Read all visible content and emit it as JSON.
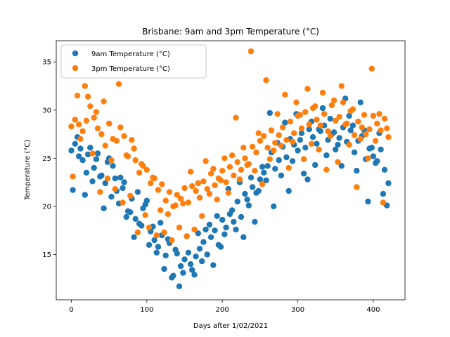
{
  "chart_data": {
    "type": "scatter",
    "title": "Brisbane: 9am and 3pm Temperature (°C)",
    "xlabel": "Days after 1/02/2021",
    "ylabel": "Temperature (°C)",
    "xlim": [
      -20,
      442
    ],
    "ylim": [
      10.3,
      37.2
    ],
    "xticks": [
      0,
      100,
      200,
      300,
      400
    ],
    "yticks": [
      15,
      20,
      25,
      30,
      35
    ],
    "grid": false,
    "legend_position": "top-left",
    "series": [
      {
        "name": "9am Temperature (°C)",
        "color": "#1f77b4",
        "x": [
          0,
          5,
          10,
          15,
          20,
          25,
          30,
          35,
          40,
          45,
          50,
          55,
          60,
          65,
          70,
          75,
          80,
          85,
          90,
          95,
          100,
          105,
          110,
          115,
          120,
          125,
          130,
          135,
          140,
          145,
          150,
          155,
          160,
          165,
          170,
          175,
          180,
          185,
          190,
          195,
          200,
          205,
          210,
          215,
          220,
          225,
          230,
          235,
          240,
          245,
          250,
          255,
          260,
          265,
          270,
          275,
          280,
          285,
          290,
          295,
          300,
          305,
          310,
          315,
          320,
          325,
          330,
          335,
          340,
          345,
          350,
          355,
          360,
          365,
          370,
          375,
          380,
          385,
          390,
          395,
          400,
          405,
          410,
          415,
          420,
          2,
          8,
          12,
          18,
          22,
          28,
          33,
          38,
          43,
          48,
          53,
          58,
          63,
          68,
          73,
          78,
          83,
          88,
          93,
          98,
          103,
          108,
          113,
          118,
          123,
          128,
          133,
          138,
          143,
          148,
          153,
          158,
          163,
          168,
          173,
          178,
          183,
          188,
          193,
          198,
          203,
          208,
          213,
          218,
          223,
          228,
          233,
          238,
          243,
          248,
          253,
          258,
          263,
          268,
          273,
          278,
          283,
          288,
          293,
          298,
          303,
          308,
          313,
          318,
          323,
          328,
          333,
          338,
          343,
          348,
          353,
          358,
          363,
          368,
          373,
          378,
          383,
          388,
          393,
          398,
          403,
          408,
          413,
          418
        ],
        "y": [
          25.8,
          26.5,
          25.2,
          24.8,
          23.5,
          26.1,
          24.0,
          25.5,
          23.2,
          22.4,
          25.0,
          24.2,
          21.6,
          23.0,
          22.5,
          19.5,
          20.8,
          18.7,
          18.2,
          19.8,
          20.6,
          17.4,
          16.5,
          15.8,
          17.0,
          14.9,
          16.2,
          12.8,
          15.1,
          13.8,
          14.5,
          15.2,
          13.4,
          14.8,
          15.6,
          16.3,
          15.0,
          16.8,
          17.5,
          16.0,
          18.6,
          17.8,
          19.2,
          18.4,
          20.5,
          18.9,
          21.3,
          20.1,
          22.0,
          21.4,
          22.8,
          23.5,
          24.2,
          25.6,
          23.9,
          24.8,
          26.2,
          25.1,
          27.0,
          26.4,
          25.8,
          27.6,
          26.1,
          28.0,
          27.2,
          26.5,
          27.8,
          28.4,
          26.9,
          27.5,
          25.9,
          27.1,
          28.2,
          26.7,
          27.9,
          25.6,
          26.8,
          27.3,
          24.9,
          26.0,
          25.2,
          24.7,
          25.9,
          23.8,
          22.4,
          21.7,
          27.2,
          26.0,
          21.2,
          25.4,
          22.6,
          24.9,
          23.1,
          19.8,
          24.6,
          21.0,
          22.9,
          20.3,
          21.9,
          18.9,
          19.4,
          16.8,
          21.5,
          18.0,
          20.2,
          16.0,
          17.9,
          15.2,
          18.3,
          13.5,
          16.6,
          12.6,
          15.5,
          11.7,
          13.1,
          16.9,
          14.0,
          12.9,
          17.2,
          14.3,
          17.6,
          18.1,
          13.9,
          19.0,
          15.8,
          17.1,
          21.8,
          19.6,
          17.6,
          22.5,
          16.8,
          20.7,
          23.0,
          18.4,
          21.6,
          24.1,
          22.7,
          29.7,
          20.0,
          26.6,
          23.2,
          28.7,
          21.6,
          24.7,
          29.6,
          26.9,
          23.4,
          22.8,
          28.8,
          24.3,
          28.0,
          30.2,
          25.3,
          29.1,
          27.7,
          26.4,
          24.2,
          31.2,
          29.4,
          28.4,
          23.7,
          30.8,
          27.9,
          20.5,
          26.1,
          24.5,
          27.6,
          21.3,
          20.1
        ]
      },
      {
        "name": "3pm Temperature (°C)",
        "color": "#ff7f0e",
        "x": [
          0,
          5,
          10,
          15,
          20,
          25,
          30,
          35,
          40,
          45,
          50,
          55,
          60,
          65,
          70,
          75,
          80,
          85,
          90,
          95,
          100,
          105,
          110,
          115,
          120,
          125,
          130,
          135,
          140,
          145,
          150,
          155,
          160,
          165,
          170,
          175,
          180,
          185,
          190,
          195,
          200,
          205,
          210,
          215,
          220,
          225,
          230,
          235,
          240,
          245,
          250,
          255,
          260,
          265,
          270,
          275,
          280,
          285,
          290,
          295,
          300,
          305,
          310,
          315,
          320,
          325,
          330,
          335,
          340,
          345,
          350,
          355,
          360,
          365,
          370,
          375,
          380,
          385,
          390,
          395,
          400,
          405,
          410,
          415,
          420,
          2,
          8,
          12,
          18,
          22,
          28,
          33,
          38,
          43,
          48,
          53,
          58,
          63,
          68,
          73,
          78,
          83,
          88,
          93,
          98,
          103,
          108,
          113,
          118,
          123,
          128,
          133,
          138,
          143,
          148,
          153,
          158,
          163,
          168,
          173,
          178,
          183,
          188,
          193,
          198,
          203,
          208,
          213,
          218,
          223,
          228,
          233,
          238,
          243,
          248,
          253,
          258,
          263,
          268,
          273,
          278,
          283,
          288,
          293,
          298,
          303,
          308,
          313,
          318,
          323,
          328,
          333,
          338,
          343,
          348,
          353,
          358,
          363,
          368,
          373,
          378,
          383,
          388,
          393,
          398,
          403,
          408,
          413,
          418
        ],
        "y": [
          28.3,
          29.0,
          28.5,
          27.8,
          28.9,
          30.4,
          29.2,
          28.1,
          27.5,
          26.3,
          28.6,
          27.0,
          26.8,
          28.2,
          27.3,
          25.2,
          26.9,
          24.8,
          23.5,
          24.2,
          23.8,
          22.4,
          22.9,
          21.7,
          22.3,
          20.6,
          21.5,
          20.0,
          21.2,
          20.8,
          21.9,
          20.4,
          22.1,
          21.6,
          20.9,
          22.6,
          21.8,
          23.4,
          22.2,
          22.9,
          23.7,
          22.5,
          24.1,
          23.2,
          24.6,
          23.8,
          25.0,
          24.4,
          26.2,
          25.6,
          26.8,
          27.3,
          26.1,
          27.9,
          26.6,
          27.4,
          28.2,
          26.9,
          28.8,
          27.6,
          29.4,
          28.1,
          29.8,
          28.5,
          30.2,
          29.0,
          28.4,
          29.6,
          27.8,
          30.5,
          28.9,
          29.3,
          30.8,
          28.6,
          29.9,
          27.4,
          28.8,
          28.2,
          27.5,
          28.0,
          29.4,
          28.6,
          27.9,
          29.1,
          27.2,
          23.1,
          31.5,
          27.0,
          32.5,
          31.4,
          25.5,
          29.8,
          21.5,
          30.9,
          22.9,
          24.8,
          21.8,
          32.7,
          20.4,
          25.3,
          21.1,
          26.0,
          17.3,
          24.4,
          19.1,
          17.8,
          23.0,
          17.0,
          19.6,
          17.3,
          19.2,
          16.5,
          20.1,
          17.8,
          20.3,
          16.9,
          23.6,
          17.6,
          22.4,
          19.0,
          24.7,
          21.3,
          23.9,
          20.7,
          22.7,
          25.0,
          21.4,
          25.3,
          29.2,
          22.8,
          26.1,
          24.3,
          36.1,
          23.7,
          27.6,
          22.3,
          33.1,
          24.9,
          25.8,
          29.6,
          26.3,
          31.6,
          24.0,
          26.7,
          30.8,
          29.5,
          24.9,
          32.2,
          26.5,
          30.4,
          25.9,
          31.8,
          23.8,
          27.3,
          31.0,
          24.6,
          32.5,
          28.5,
          26.4,
          30.1,
          22.0,
          27.0,
          29.5,
          25.0,
          34.3,
          26.8,
          29.6,
          20.4,
          28.1
        ]
      }
    ]
  }
}
